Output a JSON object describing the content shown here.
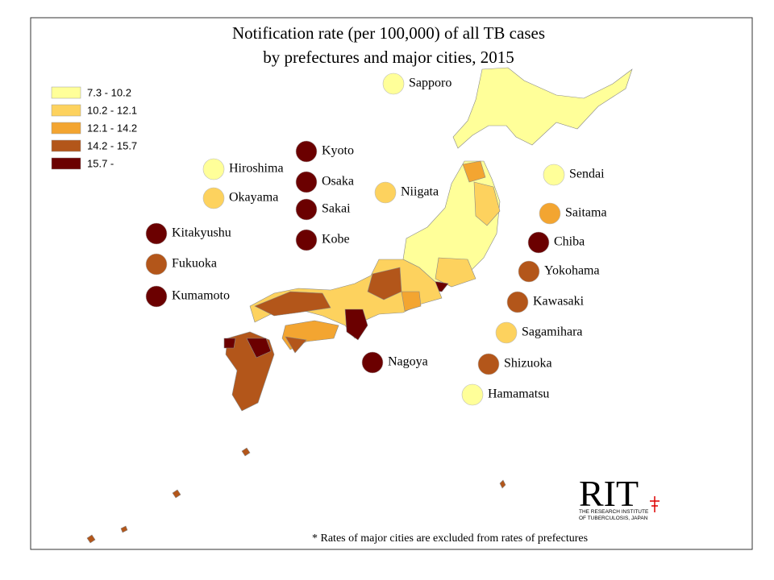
{
  "title": [
    "Notification rate (per 100,000)  of all TB cases",
    "by prefectures and major cities, 2015"
  ],
  "legend": [
    {
      "label": "7.3 - 10.2",
      "color": "#ffff99"
    },
    {
      "label": "10.2 - 12.1",
      "color": "#fdd25e"
    },
    {
      "label": "12.1 - 14.2",
      "color": "#f3a531"
    },
    {
      "label": "14.2 - 15.7",
      "color": "#b3561a"
    },
    {
      "label": "15.7 -",
      "color": "#6b0000"
    }
  ],
  "cities": [
    {
      "name": "Sapporo",
      "class": 0
    },
    {
      "name": "Kyoto",
      "class": 4
    },
    {
      "name": "Osaka",
      "class": 4
    },
    {
      "name": "Sakai",
      "class": 4
    },
    {
      "name": "Kobe",
      "class": 4
    },
    {
      "name": "Hiroshima",
      "class": 0
    },
    {
      "name": "Okayama",
      "class": 1
    },
    {
      "name": "Kitakyushu",
      "class": 4
    },
    {
      "name": "Fukuoka",
      "class": 3
    },
    {
      "name": "Kumamoto",
      "class": 4
    },
    {
      "name": "Niigata",
      "class": 1
    },
    {
      "name": "Sendai",
      "class": 0
    },
    {
      "name": "Saitama",
      "class": 2
    },
    {
      "name": "Chiba",
      "class": 4
    },
    {
      "name": "Yokohama",
      "class": 3
    },
    {
      "name": "Kawasaki",
      "class": 3
    },
    {
      "name": "Sagamihara",
      "class": 1
    },
    {
      "name": "Nagoya",
      "class": 4
    },
    {
      "name": "Shizuoka",
      "class": 3
    },
    {
      "name": "Hamamatsu",
      "class": 0
    }
  ],
  "footnote": "* Rates of major cities are excluded from rates of prefectures",
  "logo": {
    "mark": "RIT",
    "line1": "THE RESEARCH INSTITUTE",
    "line2": "OF TUBERCULOSIS, JAPAN"
  }
}
